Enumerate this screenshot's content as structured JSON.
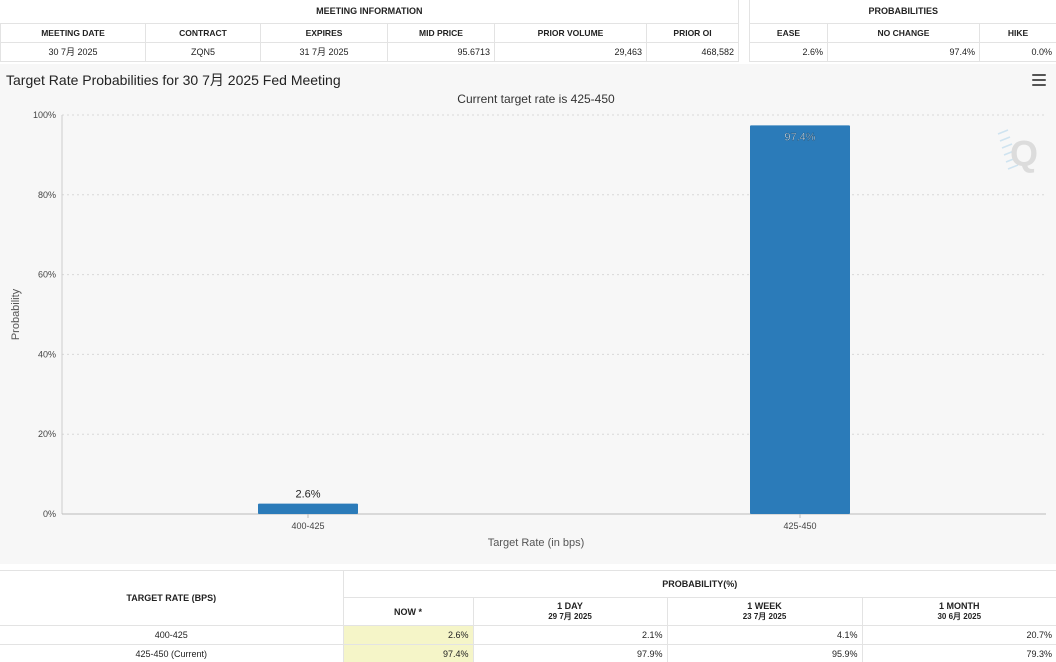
{
  "meeting_info": {
    "group_label": "MEETING INFORMATION",
    "headers": [
      "MEETING DATE",
      "CONTRACT",
      "EXPIRES",
      "MID PRICE",
      "PRIOR VOLUME",
      "PRIOR OI"
    ],
    "row": [
      "30 7月 2025",
      "ZQN5",
      "31 7月 2025",
      "95.6713",
      "29,463",
      "468,582"
    ]
  },
  "probabilities": {
    "group_label": "PROBABILITIES",
    "headers": [
      "EASE",
      "NO CHANGE",
      "HIKE"
    ],
    "row": [
      "2.6%",
      "97.4%",
      "0.0%"
    ]
  },
  "chart": {
    "title": "Target Rate Probabilities for 30 7月 2025 Fed Meeting",
    "subtitle": "Current target rate is 425-450",
    "menu_icon": "hamburger-menu-icon",
    "watermark": "Q",
    "bar_color": "#2b7bb9"
  },
  "chart_data": {
    "type": "bar",
    "title": "Target Rate Probabilities for 30 7月 2025 Fed Meeting",
    "subtitle": "Current target rate is 425-450",
    "categories": [
      "400-425",
      "425-450"
    ],
    "values": [
      2.6,
      97.4
    ],
    "data_labels": [
      "2.6%",
      "97.4%"
    ],
    "xlabel": "Target Rate (in bps)",
    "ylabel": "Probability",
    "ylim": [
      0,
      100
    ],
    "yticks": [
      "0%",
      "20%",
      "40%",
      "60%",
      "80%",
      "100%"
    ],
    "grid": true
  },
  "bottom_table": {
    "target_rate_header": "TARGET RATE (BPS)",
    "probability_header": "PROBABILITY(%)",
    "columns": [
      {
        "label": "NOW *",
        "sub": ""
      },
      {
        "label": "1 DAY",
        "sub": "29 7月 2025"
      },
      {
        "label": "1 WEEK",
        "sub": "23 7月 2025"
      },
      {
        "label": "1 MONTH",
        "sub": "30 6月 2025"
      }
    ],
    "rows": [
      {
        "rate": "400-425",
        "values": [
          "2.6%",
          "2.1%",
          "4.1%",
          "20.7%"
        ]
      },
      {
        "rate": "425-450 (Current)",
        "values": [
          "97.4%",
          "97.9%",
          "95.9%",
          "79.3%"
        ]
      }
    ]
  }
}
